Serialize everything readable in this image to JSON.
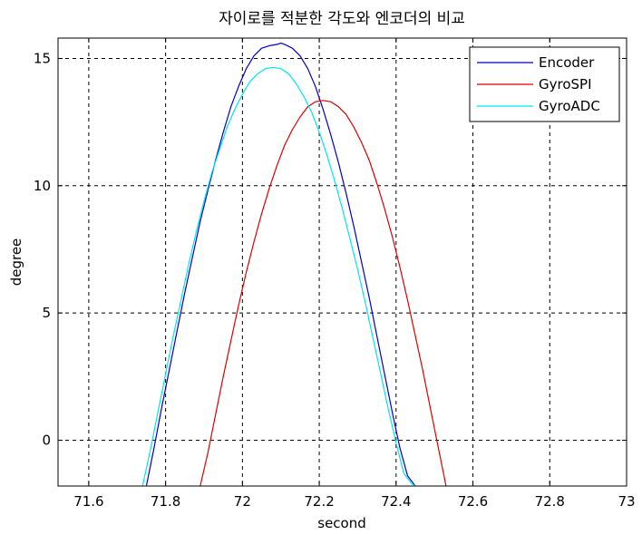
{
  "chart_data": {
    "type": "line",
    "title": "자이로를 적분한 각도와 엔코더의 비교",
    "xlabel": "second",
    "ylabel": "degree",
    "xlim": [
      71.52,
      73.0
    ],
    "ylim": [
      -1.8,
      15.8
    ],
    "xticks": [
      71.6,
      71.8,
      72.0,
      72.2,
      72.4,
      72.6,
      72.8,
      73.0
    ],
    "xtick_labels": [
      "71.6",
      "71.8",
      "72",
      "72.2",
      "72.4",
      "72.6",
      "72.8",
      "73"
    ],
    "yticks": [
      0,
      5,
      10,
      15
    ],
    "ytick_labels": [
      "0",
      "5",
      "10",
      "15"
    ],
    "grid": true,
    "grid_style": "dashed",
    "legend_position": "top-right",
    "series": [
      {
        "name": "Encoder",
        "color": "#0000cc",
        "x": [
          71.75,
          71.77,
          71.79,
          71.81,
          71.83,
          71.85,
          71.87,
          71.89,
          71.91,
          71.93,
          71.95,
          71.97,
          71.99,
          72.01,
          72.03,
          72.05,
          72.07,
          72.09,
          72.1,
          72.11,
          72.13,
          72.15,
          72.17,
          72.19,
          72.21,
          72.23,
          72.25,
          72.27,
          72.29,
          72.31,
          72.33,
          72.35,
          72.37,
          72.39,
          72.41,
          72.43,
          72.45
        ],
        "y": [
          -1.8,
          -0.3,
          1.3,
          2.8,
          4.3,
          5.8,
          7.2,
          8.6,
          9.8,
          11.0,
          12.1,
          13.1,
          13.9,
          14.6,
          15.1,
          15.4,
          15.5,
          15.55,
          15.6,
          15.55,
          15.4,
          15.1,
          14.6,
          13.9,
          13.0,
          12.0,
          10.9,
          9.7,
          8.4,
          7.0,
          5.6,
          4.1,
          2.6,
          1.1,
          -0.3,
          -1.4,
          -1.8
        ]
      },
      {
        "name": "GyroSPI",
        "color": "#dd0000",
        "x": [
          71.89,
          71.91,
          71.93,
          71.95,
          71.97,
          71.99,
          72.01,
          72.03,
          72.05,
          72.07,
          72.09,
          72.11,
          72.13,
          72.15,
          72.17,
          72.19,
          72.21,
          72.23,
          72.25,
          72.27,
          72.29,
          72.31,
          72.33,
          72.35,
          72.37,
          72.39,
          72.41,
          72.43,
          72.45,
          72.47,
          72.49,
          72.51,
          72.53
        ],
        "y": [
          -1.8,
          -0.5,
          1.0,
          2.5,
          3.9,
          5.3,
          6.6,
          7.8,
          8.9,
          9.9,
          10.8,
          11.6,
          12.2,
          12.7,
          13.1,
          13.3,
          13.35,
          13.3,
          13.1,
          12.8,
          12.3,
          11.7,
          11.0,
          10.1,
          9.1,
          8.0,
          6.8,
          5.5,
          4.1,
          2.7,
          1.2,
          -0.3,
          -1.8
        ]
      },
      {
        "name": "GyroADC",
        "color": "#00e5ee",
        "x": [
          71.74,
          71.76,
          71.78,
          71.8,
          71.82,
          71.84,
          71.86,
          71.88,
          71.9,
          71.92,
          71.94,
          71.96,
          71.98,
          72.0,
          72.02,
          72.04,
          72.06,
          72.08,
          72.1,
          72.12,
          72.14,
          72.16,
          72.18,
          72.2,
          72.22,
          72.24,
          72.26,
          72.28,
          72.3,
          72.32,
          72.34,
          72.36,
          72.38,
          72.4,
          72.42,
          72.44,
          72.45
        ],
        "y": [
          -1.8,
          -0.4,
          1.1,
          2.6,
          4.1,
          5.5,
          6.9,
          8.2,
          9.4,
          10.5,
          11.4,
          12.3,
          13.0,
          13.6,
          14.1,
          14.4,
          14.6,
          14.65,
          14.6,
          14.4,
          14.0,
          13.5,
          12.9,
          12.1,
          11.2,
          10.2,
          9.1,
          7.9,
          6.7,
          5.4,
          4.0,
          2.6,
          1.2,
          -0.1,
          -1.3,
          -1.7,
          -1.8
        ]
      }
    ]
  }
}
